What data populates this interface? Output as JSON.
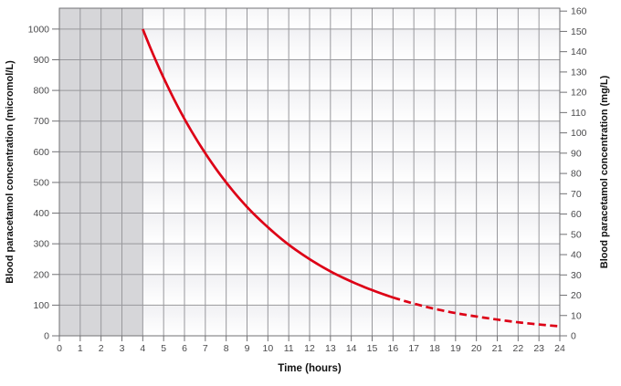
{
  "chart_data": {
    "type": "line",
    "title": "",
    "xlabel": "Time (hours)",
    "ylabel_left": "Blood paracetamol concentration (micromol/L)",
    "ylabel_right": "Blood paracetamol concentration (mg/L)",
    "x_range": [
      0,
      24
    ],
    "x_tick_step": 1,
    "x_ticks": [
      0,
      1,
      2,
      3,
      4,
      5,
      6,
      7,
      8,
      9,
      10,
      11,
      12,
      13,
      14,
      15,
      16,
      17,
      18,
      19,
      20,
      21,
      22,
      23,
      24
    ],
    "y_left_ticks": [
      0,
      100,
      200,
      300,
      400,
      500,
      600,
      700,
      800,
      900,
      1000
    ],
    "y_right_ticks_mg": [
      0,
      10,
      20,
      30,
      40,
      50,
      60,
      70,
      80,
      90,
      100,
      110,
      120,
      130,
      140,
      150,
      160
    ],
    "micromol_per_mg": 6.616,
    "y_top_value_micromol": 1068,
    "grid": true,
    "legend": "none",
    "shaded_region_hours": [
      0,
      4
    ],
    "series": [
      {
        "name": "blood-paracetamol-concentration",
        "half_life_hours": 4,
        "solid_until_hour": 16,
        "dashed_from_hour": 16,
        "points": [
          {
            "t": 4,
            "c": 1000
          },
          {
            "t": 5,
            "c": 841
          },
          {
            "t": 6,
            "c": 707
          },
          {
            "t": 7,
            "c": 595
          },
          {
            "t": 8,
            "c": 500
          },
          {
            "t": 9,
            "c": 420
          },
          {
            "t": 10,
            "c": 354
          },
          {
            "t": 11,
            "c": 297
          },
          {
            "t": 12,
            "c": 250
          },
          {
            "t": 13,
            "c": 210
          },
          {
            "t": 14,
            "c": 177
          },
          {
            "t": 15,
            "c": 149
          },
          {
            "t": 16,
            "c": 125
          },
          {
            "t": 17,
            "c": 105
          },
          {
            "t": 18,
            "c": 88
          },
          {
            "t": 19,
            "c": 74
          },
          {
            "t": 20,
            "c": 63
          },
          {
            "t": 21,
            "c": 53
          },
          {
            "t": 22,
            "c": 44
          },
          {
            "t": 23,
            "c": 37
          },
          {
            "t": 24,
            "c": 31
          }
        ]
      }
    ],
    "colors": {
      "curve_red": "#dd0016",
      "shaded_region": "#d6d6d9",
      "gridline": "#98989c",
      "axis_line": "#717174",
      "tick_label": "#4a4a4c",
      "axis_title": "#111111",
      "band_tint": "#f1f1f4",
      "plot_background": "#ffffff"
    }
  }
}
